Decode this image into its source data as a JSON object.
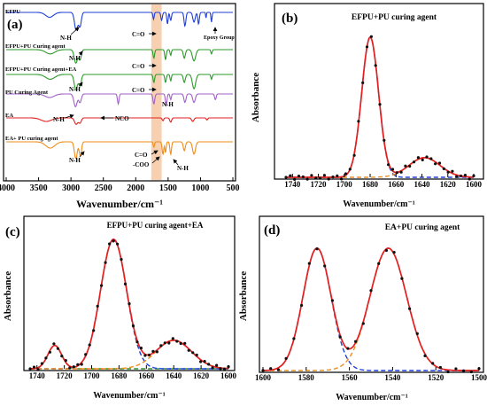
{
  "figure": {
    "colors": {
      "fit": "#e32020",
      "peak_blue": "#1f3fd6",
      "peak_orange": "#f08c1a",
      "peak_green": "#2a9a2a",
      "data": "#111111",
      "highlight": "#f6c7a3"
    }
  },
  "chart_data": [
    {
      "panel": "(a)",
      "type": "line",
      "title": "",
      "xlabel": "Wavenumber/cm⁻¹",
      "ylabel": "",
      "xlim": [
        4000,
        500
      ],
      "x_ticks": [
        "4000",
        "3500",
        "3000",
        "2500",
        "2000",
        "1500",
        "1000",
        "500"
      ],
      "y_ticks": [],
      "highlight_band": [
        1760,
        1600
      ],
      "series": [
        {
          "name": "EFPU",
          "color": "#1f3fd6"
        },
        {
          "name": "EFPU+PU Curing agent",
          "color": "#2a9a2a"
        },
        {
          "name": "EFPU+PU Curing agent+EA",
          "color": "#2a9a2a"
        },
        {
          "name": "PU Curing Agent",
          "color": "#a060c8"
        },
        {
          "name": "EA",
          "color": "#e32020"
        },
        {
          "name": "EA+ PU curing agent",
          "color": "#f08c1a"
        }
      ],
      "annotations": [
        "N-H",
        "C=O",
        "Epoxy Group",
        "N-H",
        "C=O",
        "N-H",
        "C=O",
        "N-H",
        "N-H",
        "NCO",
        "N-H",
        "C=O",
        "-COO",
        "N-H"
      ]
    },
    {
      "panel": "(b)",
      "type": "line",
      "title": "EFPU+PU curing agent",
      "xlabel": "Wavenumber/cm⁻¹",
      "ylabel": "Absorbance",
      "xlim": [
        1745,
        1600
      ],
      "x_ticks": [
        "1740",
        "1720",
        "1700",
        "1680",
        "1660",
        "1640",
        "1620",
        "1600"
      ],
      "y_ticks": [],
      "peaks": [
        {
          "center": 1680,
          "amplitude": 1.0,
          "width": 6.5,
          "color": "#1f3fd6"
        },
        {
          "center": 1638,
          "amplitude": 0.14,
          "width": 12,
          "color": "#f08c1a"
        }
      ]
    },
    {
      "panel": "(c)",
      "type": "line",
      "title": "EFPU+PU curing agent+EA",
      "xlabel": "Wavenumber/cm⁻¹",
      "ylabel": "Absorbance",
      "xlim": [
        1745,
        1600
      ],
      "x_ticks": [
        "1740",
        "1720",
        "1700",
        "1680",
        "1660",
        "1640",
        "1620",
        "1600"
      ],
      "y_ticks": [],
      "peaks": [
        {
          "center": 1727,
          "amplitude": 0.18,
          "width": 5,
          "color": "#2a9a2a"
        },
        {
          "center": 1684,
          "amplitude": 1.0,
          "width": 9.5,
          "color": "#1f3fd6"
        },
        {
          "center": 1640,
          "amplitude": 0.22,
          "width": 13,
          "color": "#f08c1a"
        }
      ]
    },
    {
      "panel": "(d)",
      "type": "line",
      "title": "EA+PU curing agent",
      "xlabel": "Wavenumber/cm⁻¹",
      "ylabel": "Absorbance",
      "xlim": [
        1600,
        1500
      ],
      "x_ticks": [
        "1600",
        "1580",
        "1560",
        "1540",
        "1520",
        "1500"
      ],
      "y_ticks": [],
      "peaks": [
        {
          "center": 1575,
          "amplitude": 0.92,
          "width": 6.5,
          "color": "#1f3fd6"
        },
        {
          "center": 1542,
          "amplitude": 0.92,
          "width": 8.5,
          "color": "#f08c1a"
        }
      ]
    }
  ]
}
